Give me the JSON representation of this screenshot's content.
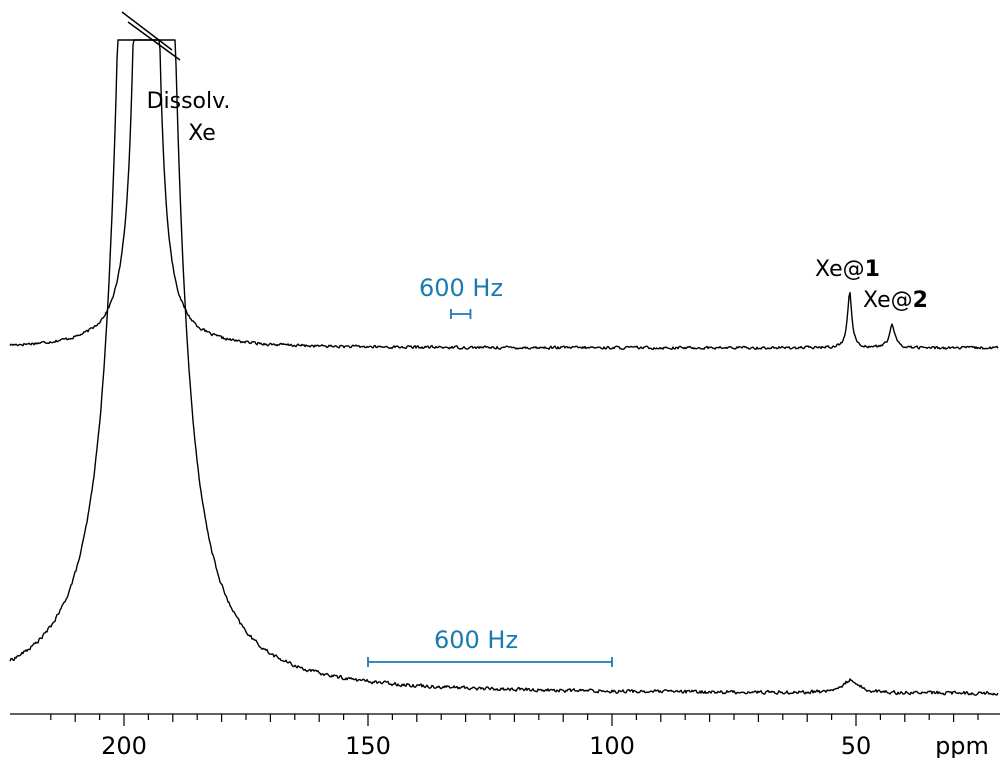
{
  "chart_data": {
    "type": "line",
    "xlabel": "ppm",
    "xlim": [
      220,
      18
    ],
    "x_reversed": true,
    "x_ticks": [
      200,
      150,
      100,
      50
    ],
    "grid": false,
    "series": [
      {
        "peaks": [
          {
            "center": 195.4,
            "width": 0.7,
            "height": "off-scale",
            "label": "Dissolv.\nXe"
          },
          {
            "center": 51.3,
            "width": 0.55,
            "height": 55,
            "label": "Xe@1"
          },
          {
            "center": 42.6,
            "width": 0.7,
            "height": 22,
            "label": "Xe@2"
          }
        ],
        "noise": 2,
        "scale_bar": {
          "text": "600 Hz",
          "from": 133,
          "to": 129
        }
      },
      {
        "peaks": [
          {
            "center": 195.4,
            "width": 2.3,
            "height": "off-scale"
          },
          {
            "center": 51.0,
            "width": 1.9,
            "height": 13
          }
        ],
        "noise": 2.5,
        "scale_bar": {
          "text": "600 Hz",
          "from": 150,
          "to": 100
        }
      }
    ],
    "annotations": {
      "dissolved": "Dissolv.\nXe",
      "xe1_prefix": "Xe@",
      "xe1_bold": "1",
      "xe2_prefix": "Xe@",
      "xe2_bold": "2",
      "scale_top": "600 Hz",
      "scale_bottom": "600 Hz"
    }
  }
}
